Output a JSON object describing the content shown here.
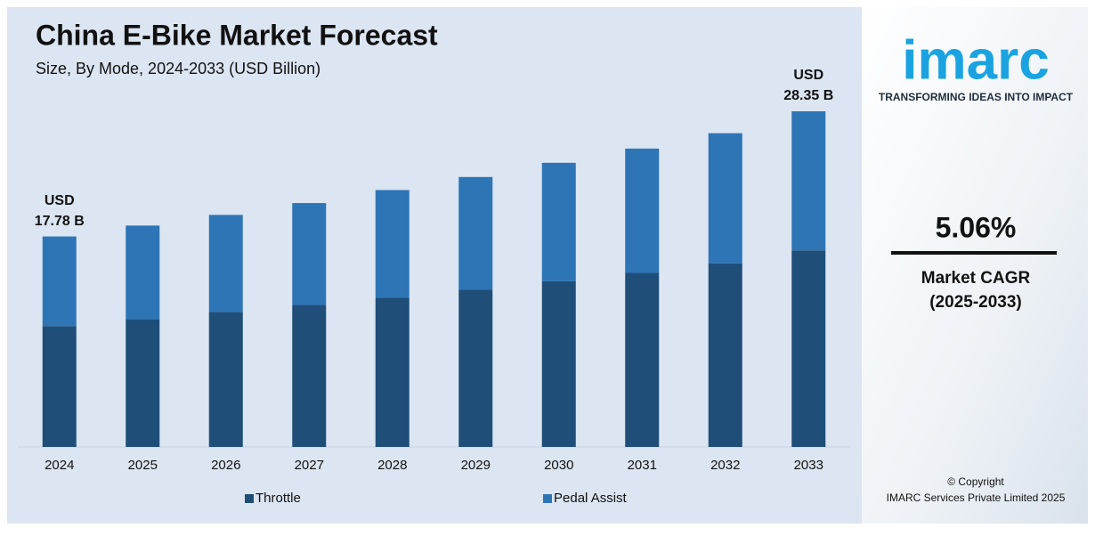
{
  "chart_data": {
    "type": "stacked_bar",
    "title": "China E-Bike Market Forecast",
    "subtitle": "Size, By Mode, 2024-2033 (USD Billion)",
    "categories": [
      "2024",
      "2025",
      "2026",
      "2027",
      "2028",
      "2029",
      "2030",
      "2031",
      "2032",
      "2033"
    ],
    "series": [
      {
        "name": "Throttle",
        "color": "#1f4e79",
        "values": [
          10.2,
          10.8,
          11.4,
          12.0,
          12.6,
          13.3,
          14.0,
          14.7,
          15.5,
          16.6
        ]
      },
      {
        "name": "Pedal Assist",
        "color": "#2e75b6",
        "values": [
          7.58,
          7.9,
          8.2,
          8.6,
          9.1,
          9.5,
          10.0,
          10.5,
          11.0,
          11.75
        ]
      }
    ],
    "annotations": [
      {
        "category": "2024",
        "value": 17.78,
        "label": [
          "USD",
          "17.78 B"
        ]
      },
      {
        "category": "2033",
        "value": 28.35,
        "label": [
          "USD",
          "28.35 B"
        ]
      }
    ],
    "legend": "bottom"
  },
  "sidebar": {
    "logo": "imarc",
    "tagline": "TRANSFORMING IDEAS INTO IMPACT",
    "cagr": "5.06%",
    "cagr_label": [
      "Market CAGR",
      "(2025-2033)"
    ],
    "copyright": [
      "© Copyright",
      "IMARC Services Private Limited 2025"
    ]
  }
}
